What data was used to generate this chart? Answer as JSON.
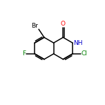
{
  "background_color": "#ffffff",
  "figsize": [
    1.52,
    1.52
  ],
  "dpi": 100,
  "bond_lw": 1.1,
  "bond_color": "#000000",
  "label_Br": "Br",
  "label_O": "O",
  "label_NH": "NH",
  "label_Cl": "Cl",
  "label_F": "F",
  "color_Br": "#000000",
  "color_O": "#ff0000",
  "color_NH": "#0000cc",
  "color_Cl": "#008000",
  "color_F": "#008000",
  "fontsize": 6.5
}
